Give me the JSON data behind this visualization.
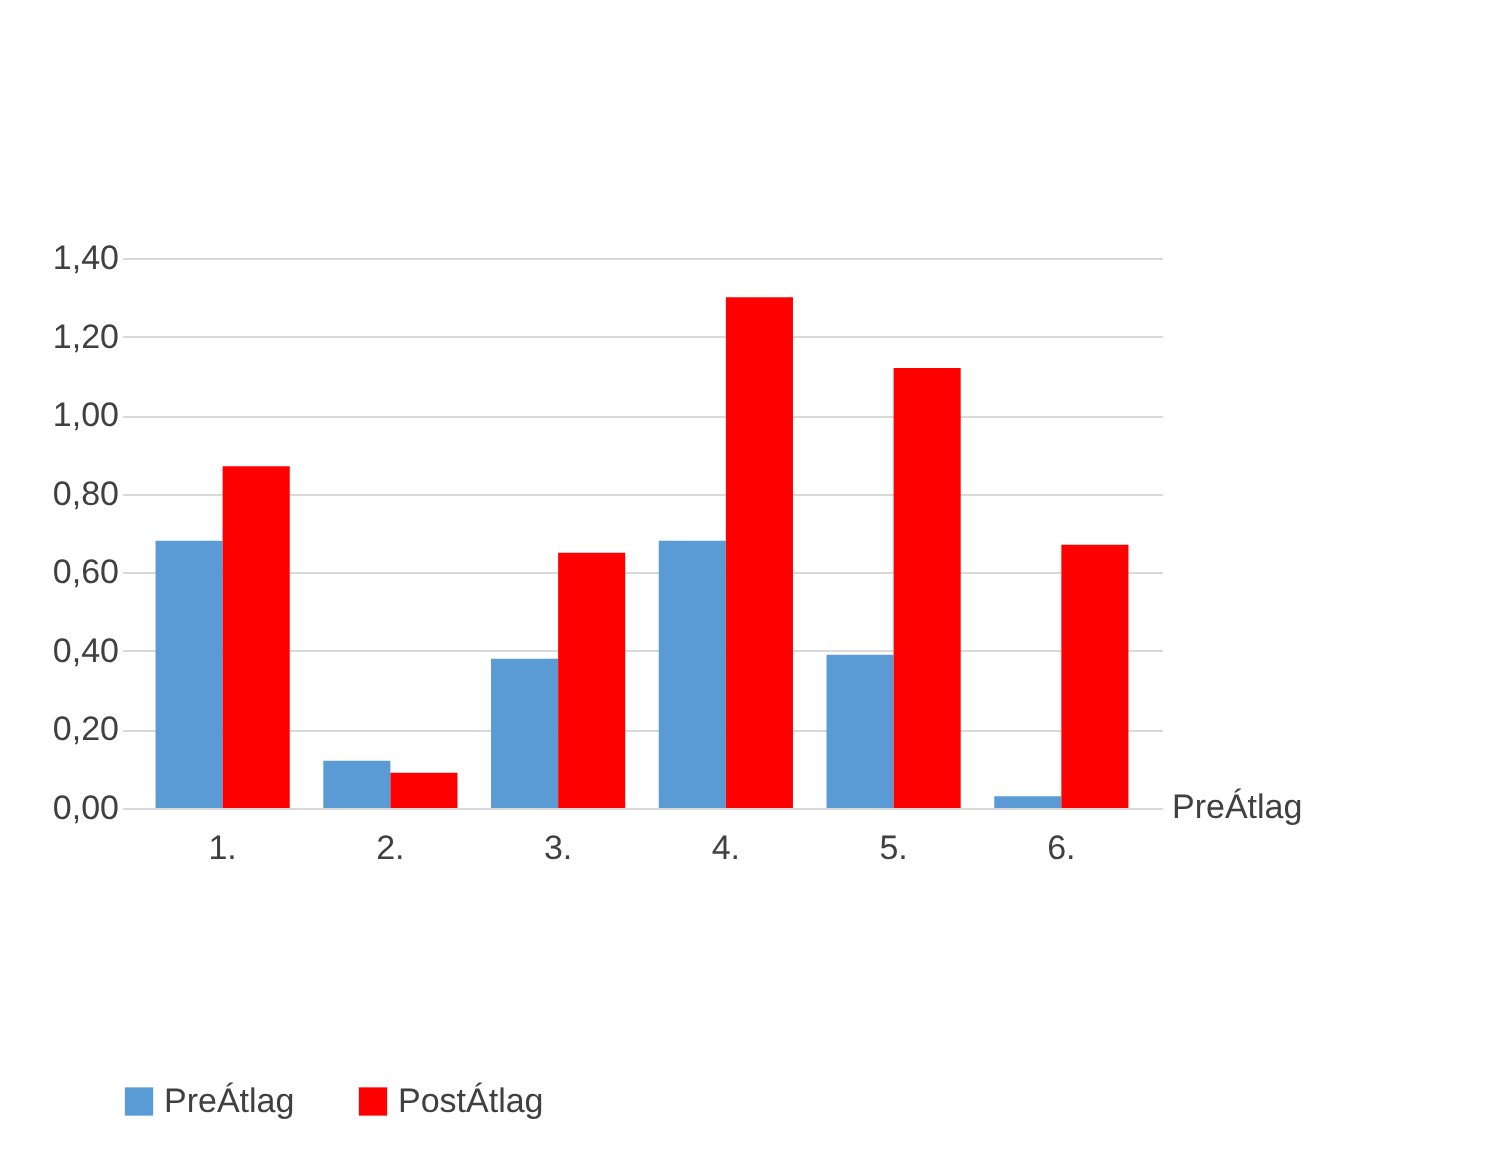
{
  "chart_data": {
    "type": "bar",
    "categories": [
      "1.",
      "2.",
      "3.",
      "4.",
      "5.",
      "6."
    ],
    "series": [
      {
        "name": "PreÁtlag",
        "color": "#5b9bd5",
        "values": [
          0.68,
          0.12,
          0.38,
          0.68,
          0.39,
          0.03
        ]
      },
      {
        "name": "PostÁtlag",
        "color": "#ff0000",
        "values": [
          0.87,
          0.09,
          0.65,
          1.3,
          1.12,
          0.67
        ]
      }
    ],
    "ylim": [
      0,
      1.4
    ],
    "yticks": [
      {
        "value": 0,
        "label": "0,00"
      },
      {
        "value": 0.2,
        "label": "0,20"
      },
      {
        "value": 0.4,
        "label": "0,40"
      },
      {
        "value": 0.6,
        "label": "0,60"
      },
      {
        "value": 0.8,
        "label": "0,80"
      },
      {
        "value": 1,
        "label": "1,00"
      },
      {
        "value": 1.2,
        "label": "1,20"
      },
      {
        "value": 1.4,
        "label": "1,40"
      }
    ],
    "grid": "y",
    "legend": "bottom",
    "annotations": [
      "PreÁtlag"
    ]
  }
}
